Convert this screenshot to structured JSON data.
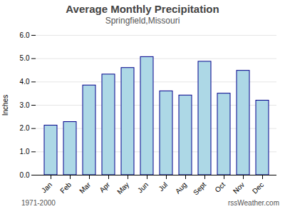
{
  "chart_data": {
    "type": "bar",
    "title": "Average Monthly Precipitation",
    "subtitle": "Springfield,Missouri",
    "ylabel": "Inches",
    "categories": [
      "Jan",
      "Feb",
      "Mar",
      "Apr",
      "May",
      "Jun",
      "Jul",
      "Aug",
      "Sept",
      "Oct",
      "Nov",
      "Dec"
    ],
    "values": [
      2.13,
      2.28,
      3.85,
      4.32,
      4.6,
      5.07,
      3.6,
      3.42,
      4.87,
      3.5,
      4.48,
      3.2
    ],
    "color": "#add8e6",
    "ylim": [
      0,
      6.0
    ],
    "yticks": [
      0,
      1,
      2,
      3,
      4,
      5,
      6
    ],
    "grid": true,
    "annotations": [
      "1971-2000",
      "rssWeather.com"
    ]
  }
}
